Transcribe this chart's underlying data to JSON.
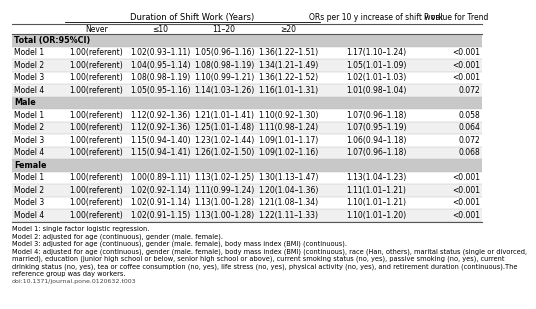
{
  "col_headers": [
    "Never",
    "≤10",
    "11–20",
    "≥20",
    "ORs per 10 y increase of shift work",
    "P value for Trend"
  ],
  "sections": [
    "Total (OR:95%CI)",
    "Male",
    "Female"
  ],
  "rows": [
    [
      "Total (OR:95%CI)",
      "Model 1",
      "1.00(referent)",
      "1.02(0.93–1.11)",
      "1.05(0.96–1.16)",
      "1.36(1.22–1.51)",
      "1.17(1.10–1.24)",
      "<0.001"
    ],
    [
      "Total (OR:95%CI)",
      "Model 2",
      "1.00(referent)",
      "1.04(0.95–1.14)",
      "1.08(0.98–1.19)",
      "1.34(1.21–1.49)",
      "1.05(1.01–1.09)",
      "<0.001"
    ],
    [
      "Total (OR:95%CI)",
      "Model 3",
      "1.00(referent)",
      "1.08(0.98–1.19)",
      "1.10(0.99–1.21)",
      "1.36(1.22–1.52)",
      "1.02(1.01–1.03)",
      "<0.001"
    ],
    [
      "Total (OR:95%CI)",
      "Model 4",
      "1.00(referent)",
      "1.05(0.95–1.16)",
      "1.14(1.03–1.26)",
      "1.16(1.01–1.31)",
      "1.01(0.98–1.04)",
      "0.072"
    ],
    [
      "Male",
      "Model 1",
      "1.00(referent)",
      "1.12(0.92–1.36)",
      "1.21(1.01–1.41)",
      "1.10(0.92–1.30)",
      "1.07(0.96–1.18)",
      "0.058"
    ],
    [
      "Male",
      "Model 2",
      "1.00(referent)",
      "1.12(0.92–1.36)",
      "1.25(1.01–1.48)",
      "1.11(0.98–1.24)",
      "1.07(0.95–1.19)",
      "0.064"
    ],
    [
      "Male",
      "Model 3",
      "1.00(referent)",
      "1.15(0.94–1.40)",
      "1.23(1.02–1.44)",
      "1.09(1.01–1.17)",
      "1.06(0.94–1.18)",
      "0.072"
    ],
    [
      "Male",
      "Model 4",
      "1.00(referent)",
      "1.15(0.94–1.41)",
      "1.26(1.02–1.50)",
      "1.09(1.02–1.16)",
      "1.07(0.96–1.18)",
      "0.068"
    ],
    [
      "Female",
      "Model 1",
      "1.00(referent)",
      "1.00(0.89–1.11)",
      "1.13(1.02–1.25)",
      "1.30(1.13–1.47)",
      "1.13(1.04–1.23)",
      "<0.001"
    ],
    [
      "Female",
      "Model 2",
      "1.00(referent)",
      "1.02(0.92–1.14)",
      "1.11(0.99–1.24)",
      "1.20(1.04–1.36)",
      "1.11(1.01–1.21)",
      "<0.001"
    ],
    [
      "Female",
      "Model 3",
      "1.00(referent)",
      "1.02(0.91–1.14)",
      "1.13(1.00–1.28)",
      "1.21(1.08–1.34)",
      "1.10(1.01–1.21)",
      "<0.001"
    ],
    [
      "Female",
      "Model 4",
      "1.00(referent)",
      "1.02(0.91–1.15)",
      "1.13(1.00–1.28)",
      "1.22(1.11–1.33)",
      "1.10(1.01–1.20)",
      "<0.001"
    ]
  ],
  "footnotes": [
    "Model 1: single factor logistic regression.",
    "Model 2: adjusted for age (continuous), gender (male. female).",
    "Model 3: adjusted for age (continuous), gender (male. female), body mass index (BMI) (continuous).",
    "Model 4: adjusted for age (continuous), gender (male. female), body mass index (BMI) (continuous), race (Han, others), marital status (single or divorced,",
    "married), education (junior high school or below, senior high school or above), current smoking status (no, yes), passive smoking (no, yes), current",
    "drinking status (no, yes), tea or coffee consumption (no, yes), life stress (no, yes), physical activity (no, yes), and retirement duration (continuous).The",
    "reference group was day workers."
  ],
  "doi": "doi:10.1371/journal.pone.0120632.t003",
  "section_bg": "#c8c8c8",
  "row_bg_alt": "#f0f0f0",
  "font_size": 5.5,
  "hdr_font_size": 6.0,
  "fn_font_size": 4.8
}
